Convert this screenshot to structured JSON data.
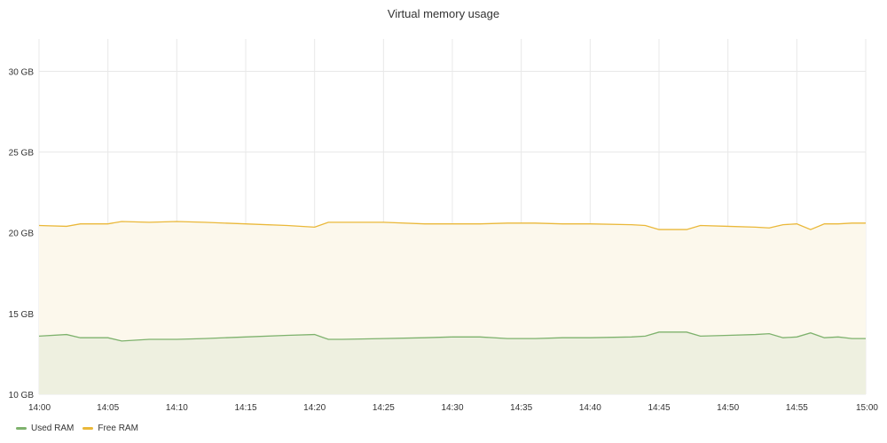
{
  "chart_data": {
    "type": "area",
    "title": "Virtual memory usage",
    "x_ticks": [
      "14:00",
      "14:05",
      "14:10",
      "14:15",
      "14:20",
      "14:25",
      "14:30",
      "14:35",
      "14:40",
      "14:45",
      "14:50",
      "14:55",
      "15:00"
    ],
    "y_ticks": [
      "10 GB",
      "15 GB",
      "20 GB",
      "25 GB",
      "30 GB"
    ],
    "xlim": [
      "14:00",
      "15:00"
    ],
    "ylim": [
      10,
      32
    ],
    "y_unit": "GB",
    "grid": true,
    "legend_position": "bottom-left",
    "x": [
      "14:00",
      "14:02",
      "14:03",
      "14:04",
      "14:05",
      "14:06",
      "14:08",
      "14:10",
      "14:12",
      "14:15",
      "14:18",
      "14:20",
      "14:21",
      "14:22",
      "14:25",
      "14:28",
      "14:30",
      "14:32",
      "14:34",
      "14:36",
      "14:38",
      "14:40",
      "14:43",
      "14:44",
      "14:45",
      "14:46",
      "14:47",
      "14:48",
      "14:50",
      "14:52",
      "14:53",
      "14:54",
      "14:55",
      "14:56",
      "14:57",
      "14:58",
      "14:59",
      "15:00"
    ],
    "series": [
      {
        "name": "Used RAM",
        "color": "#7eb26d",
        "fill": "#eef0e0",
        "values": [
          13.6,
          13.7,
          13.5,
          13.5,
          13.5,
          13.3,
          13.4,
          13.4,
          13.45,
          13.55,
          13.65,
          13.7,
          13.4,
          13.4,
          13.45,
          13.5,
          13.55,
          13.55,
          13.45,
          13.45,
          13.5,
          13.5,
          13.55,
          13.6,
          13.85,
          13.85,
          13.85,
          13.6,
          13.65,
          13.7,
          13.75,
          13.5,
          13.55,
          13.8,
          13.5,
          13.55,
          13.45,
          13.45
        ]
      },
      {
        "name": "Free RAM",
        "color": "#eab839",
        "fill": "#fcf8ec",
        "values": [
          20.45,
          20.4,
          20.55,
          20.55,
          20.55,
          20.7,
          20.65,
          20.7,
          20.65,
          20.55,
          20.45,
          20.35,
          20.65,
          20.65,
          20.65,
          20.55,
          20.55,
          20.55,
          20.6,
          20.6,
          20.55,
          20.55,
          20.5,
          20.45,
          20.2,
          20.2,
          20.2,
          20.45,
          20.4,
          20.35,
          20.3,
          20.5,
          20.55,
          20.2,
          20.55,
          20.55,
          20.6,
          20.6
        ]
      }
    ]
  }
}
